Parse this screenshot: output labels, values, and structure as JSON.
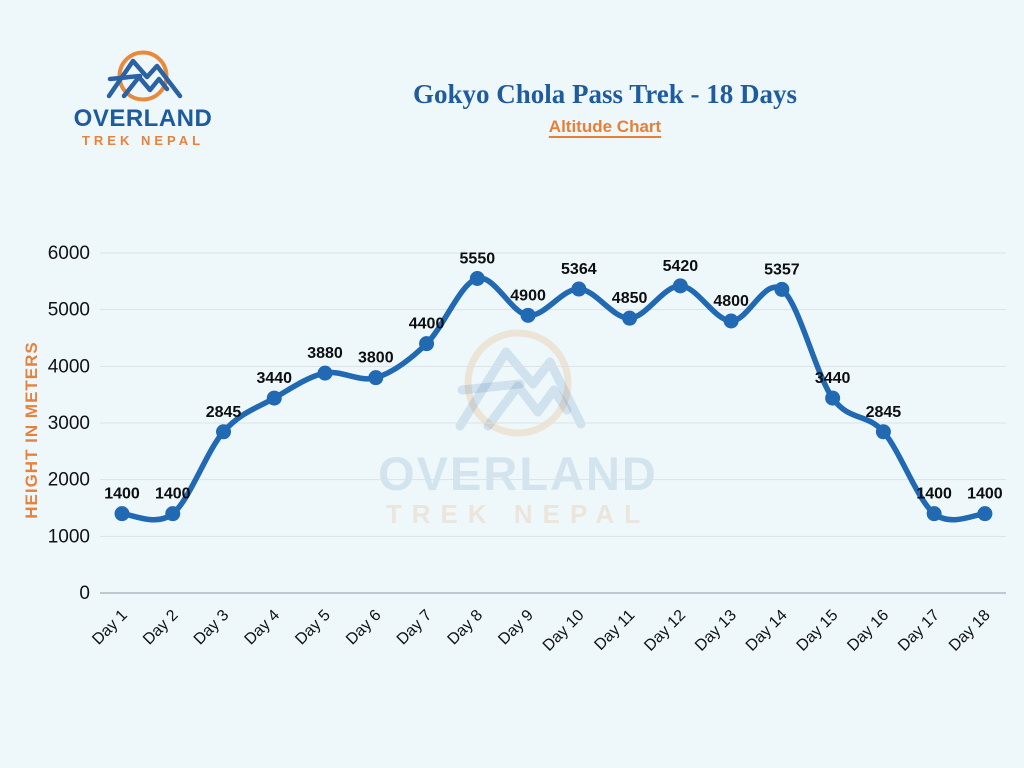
{
  "brand": {
    "line1": "OVERLAND",
    "line2": "TREK NEPAL"
  },
  "header": {
    "title": "Gokyo Chola Pass Trek - 18 Days",
    "subtitle": "Altitude Chart"
  },
  "watermark": {
    "line1": "OVERLAND",
    "line2": "TREK NEPAL"
  },
  "colors": {
    "background": "#eef8fb",
    "brand_blue": "#1d5b9e",
    "brand_orange": "#e8823a",
    "title_blue": "#1e5c9f",
    "subtitle_orange": "#e87f35",
    "line_blue": "#2169b3",
    "grid": "#dbe2e6",
    "axis": "#aeb8bf",
    "label_black": "#101214"
  },
  "chart_data": {
    "type": "line",
    "title": "Gokyo Chola Pass Trek - 18 Days",
    "subtitle": "Altitude Chart",
    "categories": [
      "Day 1",
      "Day 2",
      "Day 3",
      "Day 4",
      "Day 5",
      "Day 6",
      "Day 7",
      "Day 8",
      "Day 9",
      "Day 10",
      "Day 11",
      "Day 12",
      "Day 13",
      "Day 14",
      "Day 15",
      "Day 16",
      "Day 17",
      "Day 18"
    ],
    "values": [
      1400,
      1400,
      2845,
      3440,
      3880,
      3800,
      4400,
      5550,
      4900,
      5364,
      4850,
      5420,
      4800,
      5357,
      3440,
      2845,
      1400,
      1400
    ],
    "xlabel": "",
    "ylabel": "HEIGHT IN METERS",
    "ylim": [
      0,
      6000
    ],
    "yticks": [
      0,
      1000,
      2000,
      3000,
      4000,
      5000,
      6000
    ],
    "grid": "horizontal",
    "legend": "none",
    "point_labels": true,
    "line_color": "#2169b3",
    "marker": "circle"
  }
}
